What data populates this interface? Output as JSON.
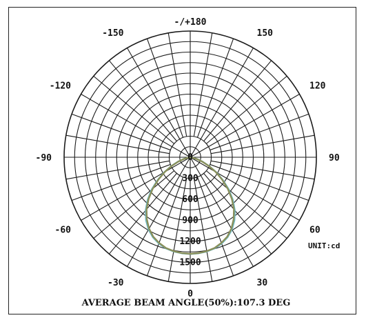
{
  "chart_data": {
    "type": "polar",
    "unit_label": "UNIT:cd",
    "footer": "AVERAGE BEAM ANGLE(50%):107.3 DEG",
    "radial_ticks": [
      0,
      300,
      600,
      900,
      1200,
      1500
    ],
    "radial_tick_labels": [
      "0",
      "300",
      "600",
      "900",
      "1200",
      "1500"
    ],
    "radial_max": 1800,
    "angle_ticks": [
      {
        "angle": 180,
        "label": "-/+180"
      },
      {
        "angle": 150,
        "label": "150"
      },
      {
        "angle": 120,
        "label": "120"
      },
      {
        "angle": 90,
        "label": "90"
      },
      {
        "angle": 60,
        "label": "60"
      },
      {
        "angle": 30,
        "label": "30"
      },
      {
        "angle": 0,
        "label": "0"
      },
      {
        "angle": -30,
        "label": "-30"
      },
      {
        "angle": -60,
        "label": "-60"
      },
      {
        "angle": -90,
        "label": "-90"
      },
      {
        "angle": -120,
        "label": "-120"
      },
      {
        "angle": -150,
        "label": "-150"
      }
    ],
    "spoke_step_deg": 10,
    "series": [
      {
        "color": "#6fb8c2",
        "angles": [
          -80,
          -75,
          -70,
          -65,
          -60,
          -55,
          -50,
          -45,
          -40,
          -35,
          -30,
          -25,
          -20,
          -15,
          -10,
          -5,
          0,
          5,
          10,
          15,
          20,
          25,
          30,
          35,
          40,
          45,
          50,
          55,
          60,
          65,
          70,
          75,
          80
        ],
        "values": [
          30,
          100,
          190,
          300,
          430,
          570,
          720,
          860,
          990,
          1100,
          1190,
          1260,
          1310,
          1345,
          1365,
          1375,
          1380,
          1375,
          1365,
          1345,
          1310,
          1260,
          1190,
          1100,
          990,
          860,
          720,
          570,
          430,
          300,
          190,
          100,
          30
        ]
      },
      {
        "color": "#8a8f5a",
        "angles": [
          -80,
          -75,
          -70,
          -65,
          -60,
          -55,
          -50,
          -45,
          -40,
          -35,
          -30,
          -25,
          -20,
          -15,
          -10,
          -5,
          0,
          5,
          10,
          15,
          20,
          25,
          30,
          35,
          40,
          45,
          50,
          55,
          60,
          65,
          70,
          75,
          80
        ],
        "values": [
          25,
          90,
          180,
          290,
          420,
          555,
          700,
          840,
          970,
          1080,
          1175,
          1250,
          1300,
          1340,
          1360,
          1372,
          1378,
          1372,
          1360,
          1340,
          1300,
          1250,
          1175,
          1080,
          970,
          840,
          700,
          555,
          420,
          290,
          180,
          90,
          25
        ]
      }
    ],
    "colors": {
      "grid": "#1a1a1a",
      "curve_primary": "#6fb8c2",
      "curve_secondary": "#8a8f5a"
    }
  }
}
